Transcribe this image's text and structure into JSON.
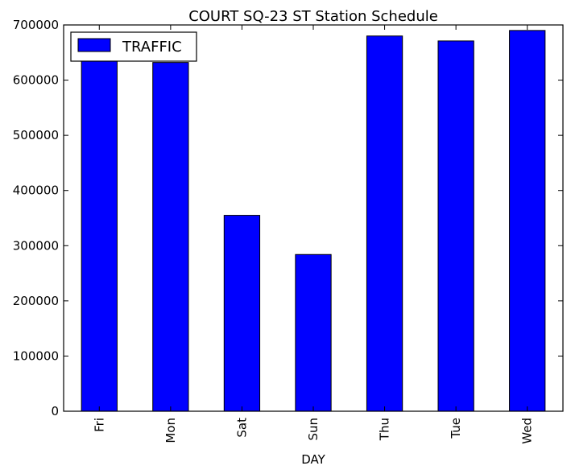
{
  "chart_data": {
    "type": "bar",
    "title": "COURT SQ-23 ST Station Schedule",
    "xlabel": "DAY",
    "ylabel": "",
    "categories": [
      "Fri",
      "Mon",
      "Sat",
      "Sun",
      "Thu",
      "Tue",
      "Wed"
    ],
    "series": [
      {
        "name": "TRAFFIC",
        "color": "#0000ff",
        "values": [
          636000,
          632000,
          355000,
          284000,
          680000,
          671000,
          690000
        ]
      }
    ],
    "ylim": [
      0,
      700000
    ],
    "yticks": [
      "0",
      "100000",
      "200000",
      "300000",
      "400000",
      "500000",
      "600000",
      "700000"
    ],
    "legend_position": "top-left",
    "grid": false
  }
}
